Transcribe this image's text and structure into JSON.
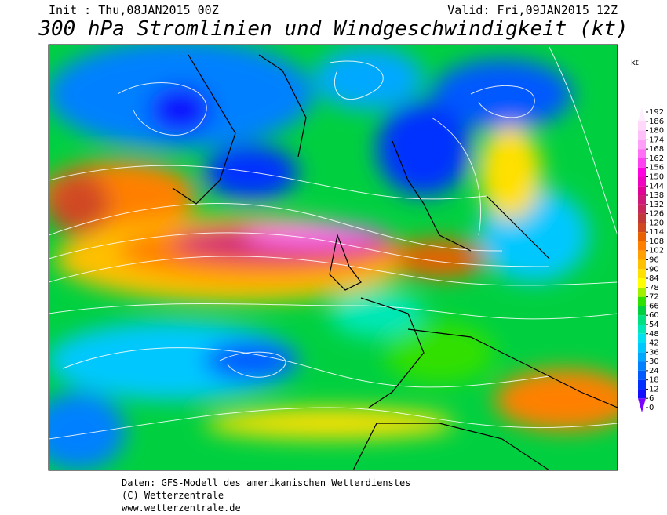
{
  "header": {
    "init": "Init : Thu,08JAN2015 00Z",
    "valid": "Valid: Fri,09JAN2015 12Z",
    "title": "300 hPa Stromlinien und Windgeschwindigkeit (kt)"
  },
  "legend": {
    "unit": "kt",
    "ticks": [
      0,
      6,
      12,
      18,
      24,
      30,
      36,
      42,
      48,
      54,
      60,
      66,
      72,
      78,
      84,
      90,
      96,
      102,
      108,
      114,
      120,
      126,
      132,
      138,
      144,
      150,
      156,
      162,
      168,
      174,
      180,
      186,
      192
    ],
    "colors": [
      "#7a00ff",
      "#1010ff",
      "#0030ff",
      "#0058ff",
      "#0080ff",
      "#00a8ff",
      "#00c8ff",
      "#00e0f0",
      "#00e8b8",
      "#00e080",
      "#00d040",
      "#30e000",
      "#a0f000",
      "#ffff00",
      "#ffe000",
      "#ffc000",
      "#ffa000",
      "#ff8000",
      "#e86000",
      "#d04820",
      "#c03838",
      "#c82858",
      "#d01878",
      "#e00098",
      "#f000c0",
      "#ff00e0",
      "#ff40f0",
      "#ff70f4",
      "#ffa0f8",
      "#ffc0fa",
      "#ffd8fc",
      "#ffeefe"
    ]
  },
  "footer": {
    "lines": [
      "Daten: GFS-Modell des amerikanischen Wetterdienstes",
      "(C) Wetterzentrale",
      "www.wetterzentrale.de"
    ]
  }
}
